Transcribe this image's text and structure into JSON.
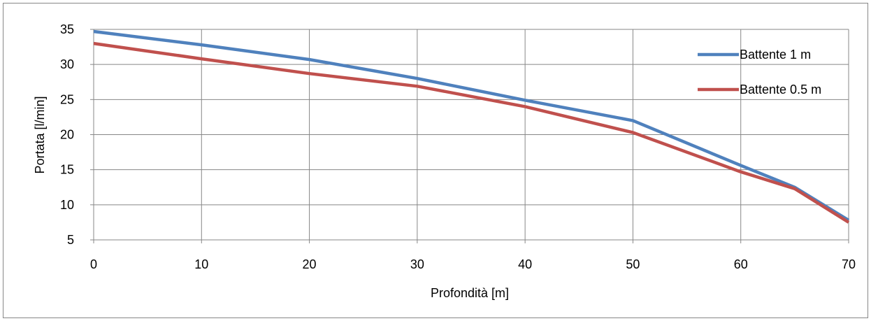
{
  "chart_data": {
    "type": "line",
    "xlabel": "Profondità [m]",
    "ylabel": "Portata [l/min]",
    "xlim": [
      0,
      70
    ],
    "ylim": [
      5,
      35
    ],
    "x_ticks": [
      0,
      10,
      20,
      30,
      40,
      50,
      60,
      70
    ],
    "y_ticks": [
      5,
      10,
      15,
      20,
      25,
      30,
      35
    ],
    "x_tick_labels": [
      "0",
      "10",
      "20",
      "30",
      "40",
      "50",
      "60",
      "70"
    ],
    "y_tick_labels": [
      "5",
      "10",
      "15",
      "20",
      "25",
      "30",
      "35"
    ],
    "grid": true,
    "legend_position": "right",
    "x": [
      0,
      10,
      20,
      30,
      40,
      50,
      60,
      65,
      70
    ],
    "series": [
      {
        "name": "Battente 1 m",
        "color": "#4F81BD",
        "values": [
          34.7,
          32.8,
          30.7,
          28.0,
          24.9,
          22.0,
          15.6,
          12.5,
          7.8
        ]
      },
      {
        "name": "Battente 0.5 m",
        "color": "#C0504D",
        "values": [
          33.0,
          30.8,
          28.7,
          26.9,
          24.0,
          20.3,
          14.7,
          12.3,
          7.5
        ]
      }
    ]
  },
  "colors": {
    "grid": "#878787",
    "frame": "#878787",
    "axis": "#878787"
  }
}
